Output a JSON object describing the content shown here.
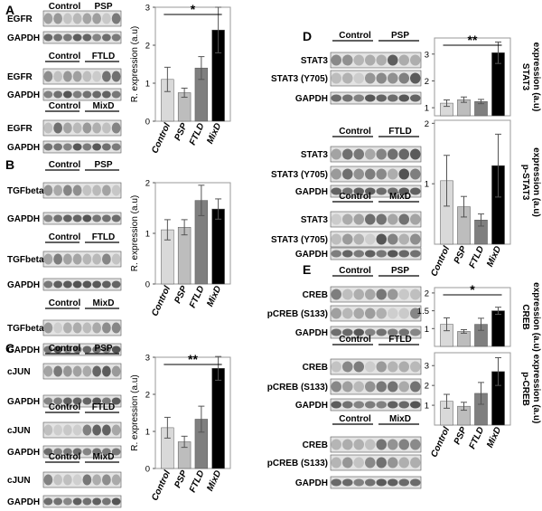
{
  "panels": [
    {
      "letter": "A",
      "blots": [
        {
          "groups": [
            "Control",
            "PSP"
          ],
          "labels": [
            "EGFR",
            "GAPDH"
          ]
        },
        {
          "groups": [
            "Control",
            "FTLD"
          ],
          "labels": [
            "EGFR",
            "GAPDH"
          ]
        },
        {
          "groups": [
            "Control",
            "MixD"
          ],
          "labels": [
            "EGFR",
            "GAPDH"
          ]
        }
      ]
    },
    {
      "letter": "B",
      "blots": [
        {
          "groups": [
            "Control",
            "PSP"
          ],
          "labels": [
            "TGFbeta",
            "GAPDH"
          ]
        },
        {
          "groups": [
            "Control",
            "FTLD"
          ],
          "labels": [
            "TGFbeta",
            "GAPDH"
          ]
        },
        {
          "groups": [
            "Control",
            "MixD"
          ],
          "labels": [
            "TGFbeta",
            "GAPDH"
          ]
        }
      ]
    },
    {
      "letter": "C",
      "blots": [
        {
          "groups": [
            "Control",
            "PSP"
          ],
          "labels": [
            "cJUN",
            "GAPDH"
          ]
        },
        {
          "groups": [
            "Control",
            "FTLD"
          ],
          "labels": [
            "cJUN",
            "GAPDH"
          ]
        },
        {
          "groups": [
            "Control",
            "MixD"
          ],
          "labels": [
            "cJUN",
            "GAPDH"
          ]
        }
      ]
    },
    {
      "letter": "D",
      "blots": [
        {
          "groups": [
            "Control",
            "PSP"
          ],
          "labels": [
            "STAT3",
            "STAT3 (Y705)",
            "GAPDH"
          ]
        },
        {
          "groups": [
            "Control",
            "FTLD"
          ],
          "labels": [
            "STAT3",
            "STAT3 (Y705)",
            "GAPDH"
          ]
        },
        {
          "groups": [
            "Control",
            "MixD"
          ],
          "labels": [
            "STAT3",
            "STAT3 (Y705)",
            "GAPDH"
          ]
        }
      ]
    },
    {
      "letter": "E",
      "blots": [
        {
          "groups": [
            "Control",
            "PSP"
          ],
          "labels": [
            "CREB",
            "pCREB (S133)",
            "GAPDH"
          ]
        },
        {
          "groups": [
            "Control",
            "FTLD"
          ],
          "labels": [
            "CREB",
            "pCREB (S133)",
            "GAPDH"
          ]
        },
        {
          "groups": [
            "Control",
            "MixD"
          ],
          "labels": [
            "CREB",
            "pCREB (S133)",
            "GAPDH"
          ]
        }
      ]
    }
  ],
  "chart_data": [
    {
      "panel": "A",
      "type": "bar",
      "categories": [
        "Control",
        "PSP",
        "FTLD",
        "MixD"
      ],
      "values": [
        1.1,
        0.75,
        1.4,
        2.4
      ],
      "errors": [
        0.32,
        0.12,
        0.3,
        0.6
      ],
      "colors": [
        "#d9d9d9",
        "#bdbdbd",
        "#7f7f7f",
        "#000000"
      ],
      "ylabel": "R. expression (a.u)",
      "ylim": [
        0,
        3
      ],
      "yticks": [
        "0",
        "1",
        "2",
        "3"
      ],
      "significance": [
        {
          "from": "Control",
          "to": "MixD",
          "label": "*"
        }
      ]
    },
    {
      "panel": "B",
      "type": "bar",
      "categories": [
        "Control",
        "PSP",
        "FTLD",
        "MixD"
      ],
      "values": [
        1.07,
        1.12,
        1.65,
        1.48
      ],
      "errors": [
        0.2,
        0.15,
        0.3,
        0.2
      ],
      "colors": [
        "#d9d9d9",
        "#bdbdbd",
        "#7f7f7f",
        "#000000"
      ],
      "ylabel": "R. expression (a.u)",
      "ylim": [
        0,
        2
      ],
      "yticks": [
        "0",
        "1",
        "2"
      ]
    },
    {
      "panel": "C",
      "type": "bar",
      "categories": [
        "Control",
        "PSP",
        "FTLD",
        "MixD"
      ],
      "values": [
        1.1,
        0.72,
        1.33,
        2.7
      ],
      "errors": [
        0.28,
        0.15,
        0.35,
        0.32
      ],
      "colors": [
        "#d9d9d9",
        "#bdbdbd",
        "#7f7f7f",
        "#000000"
      ],
      "ylabel": "R. expression (a.u)",
      "ylim": [
        0,
        3
      ],
      "yticks": [
        "0",
        "1",
        "2",
        "3"
      ],
      "significance": [
        {
          "from": "Control",
          "to": "MixD",
          "label": "**"
        }
      ]
    },
    {
      "panel": "D",
      "type": "bar",
      "categories": [
        "Control",
        "PSP",
        "FTLD",
        "MixD"
      ],
      "values": [
        1.17,
        1.3,
        1.23,
        3.05
      ],
      "errors": [
        0.12,
        0.1,
        0.08,
        0.4
      ],
      "colors": [
        "#d9d9d9",
        "#bdbdbd",
        "#7f7f7f",
        "#000000"
      ],
      "ylabel": "STAT3 expression (a.u)",
      "ylim": [
        0.7,
        3.6
      ],
      "yticks": [
        "1",
        "2",
        "3"
      ],
      "significance": [
        {
          "from": "Control",
          "to": "MixD",
          "label": "**"
        }
      ]
    },
    {
      "panel": "D",
      "type": "bar",
      "categories": [
        "Control",
        "PSP",
        "FTLD",
        "MixD"
      ],
      "values": [
        1.05,
        0.62,
        0.4,
        1.3
      ],
      "errors": [
        0.42,
        0.17,
        0.1,
        0.52
      ],
      "colors": [
        "#d9d9d9",
        "#bdbdbd",
        "#7f7f7f",
        "#000000"
      ],
      "ylabel": "p-STAT3 expression (a.u)",
      "ylim": [
        0,
        2.05
      ],
      "yticks": [
        "1",
        "2"
      ]
    },
    {
      "panel": "E",
      "type": "bar",
      "categories": [
        "Control",
        "PSP",
        "FTLD",
        "MixD"
      ],
      "values": [
        1.12,
        0.92,
        1.12,
        1.5
      ],
      "errors": [
        0.18,
        0.05,
        0.17,
        0.1
      ],
      "colors": [
        "#d9d9d9",
        "#bdbdbd",
        "#7f7f7f",
        "#000000"
      ],
      "ylabel": "CREB expression (a.u)",
      "ylim": [
        0.5,
        2.15
      ],
      "yticks": [
        "1",
        "1.5",
        "2"
      ],
      "significance": [
        {
          "from": "Control",
          "to": "MixD",
          "label": "*"
        }
      ]
    },
    {
      "panel": "E",
      "type": "bar",
      "categories": [
        "Control",
        "PSP",
        "FTLD",
        "MixD"
      ],
      "values": [
        1.2,
        0.95,
        1.6,
        2.7
      ],
      "errors": [
        0.35,
        0.2,
        0.55,
        0.7
      ],
      "colors": [
        "#d9d9d9",
        "#bdbdbd",
        "#7f7f7f",
        "#000000"
      ],
      "ylabel": "p-CREB expression (a.u)",
      "ylim": [
        0,
        3.65
      ],
      "yticks": [
        "1",
        "2",
        "3"
      ]
    }
  ]
}
